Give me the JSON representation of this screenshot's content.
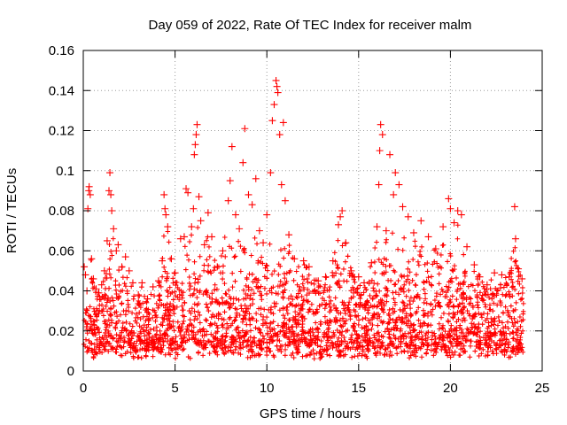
{
  "chart_data": {
    "type": "scatter",
    "title": "Day 059 of 2022, Rate Of TEC Index for receiver malm",
    "xlabel": "GPS time / hours",
    "ylabel": "ROTI / TECUs",
    "xlim": [
      0,
      25
    ],
    "ylim": [
      0,
      0.16
    ],
    "xticks": [
      0,
      5,
      10,
      15,
      20,
      25
    ],
    "xtick_labels": [
      "0",
      "5",
      "10",
      "15",
      "20",
      "25"
    ],
    "yticks": [
      0,
      0.02,
      0.04,
      0.06,
      0.08,
      0.1,
      0.12,
      0.14,
      0.16
    ],
    "ytick_labels": [
      "0",
      "0.02",
      "0.04",
      "0.06",
      "0.08",
      "0.1",
      "0.12",
      "0.14",
      "0.16"
    ],
    "grid": true,
    "legend": "none",
    "marker": "plus",
    "marker_color": "#ff0000",
    "series": [
      {
        "points": [
          [
            0.05,
            0.052
          ],
          [
            0.12,
            0.048
          ],
          [
            0.2,
            0.04
          ],
          [
            0.25,
            0.081
          ],
          [
            0.3,
            0.09
          ],
          [
            0.32,
            0.092
          ],
          [
            0.38,
            0.088
          ],
          [
            0.45,
            0.056
          ],
          [
            0.55,
            0.046
          ],
          [
            0.7,
            0.041
          ],
          [
            0.85,
            0.039
          ],
          [
            1.0,
            0.043
          ],
          [
            1.15,
            0.05
          ],
          [
            1.3,
            0.065
          ],
          [
            1.4,
            0.09
          ],
          [
            1.45,
            0.099
          ],
          [
            1.5,
            0.088
          ],
          [
            1.55,
            0.08
          ],
          [
            1.65,
            0.071
          ],
          [
            1.8,
            0.06
          ],
          [
            1.9,
            0.063
          ],
          [
            2.1,
            0.052
          ],
          [
            2.3,
            0.057
          ],
          [
            2.5,
            0.05
          ],
          [
            2.7,
            0.044
          ],
          [
            3.0,
            0.038
          ],
          [
            3.2,
            0.044
          ],
          [
            3.5,
            0.036
          ],
          [
            3.8,
            0.042
          ],
          [
            4.1,
            0.045
          ],
          [
            4.3,
            0.055
          ],
          [
            4.4,
            0.088
          ],
          [
            4.45,
            0.081
          ],
          [
            4.5,
            0.078
          ],
          [
            4.6,
            0.072
          ],
          [
            4.8,
            0.056
          ],
          [
            5.0,
            0.049
          ],
          [
            5.3,
            0.066
          ],
          [
            5.5,
            0.067
          ],
          [
            5.6,
            0.091
          ],
          [
            5.7,
            0.089
          ],
          [
            5.9,
            0.072
          ],
          [
            6.0,
            0.081
          ],
          [
            6.05,
            0.108
          ],
          [
            6.1,
            0.113
          ],
          [
            6.15,
            0.118
          ],
          [
            6.2,
            0.123
          ],
          [
            6.3,
            0.087
          ],
          [
            6.4,
            0.075
          ],
          [
            6.6,
            0.063
          ],
          [
            6.8,
            0.079
          ],
          [
            7.0,
            0.067
          ],
          [
            7.3,
            0.052
          ],
          [
            7.6,
            0.06
          ],
          [
            7.9,
            0.085
          ],
          [
            8.0,
            0.095
          ],
          [
            8.1,
            0.112
          ],
          [
            8.3,
            0.078
          ],
          [
            8.5,
            0.071
          ],
          [
            8.7,
            0.104
          ],
          [
            8.8,
            0.121
          ],
          [
            9.0,
            0.088
          ],
          [
            9.2,
            0.083
          ],
          [
            9.4,
            0.096
          ],
          [
            9.6,
            0.07
          ],
          [
            9.8,
            0.064
          ],
          [
            10.0,
            0.078
          ],
          [
            10.2,
            0.099
          ],
          [
            10.3,
            0.125
          ],
          [
            10.4,
            0.133
          ],
          [
            10.5,
            0.145
          ],
          [
            10.55,
            0.142
          ],
          [
            10.6,
            0.139
          ],
          [
            10.7,
            0.118
          ],
          [
            10.8,
            0.093
          ],
          [
            10.9,
            0.124
          ],
          [
            11.0,
            0.085
          ],
          [
            11.2,
            0.068
          ],
          [
            11.5,
            0.056
          ],
          [
            12.0,
            0.055
          ],
          [
            12.3,
            0.052
          ],
          [
            12.8,
            0.045
          ],
          [
            13.2,
            0.047
          ],
          [
            13.6,
            0.055
          ],
          [
            13.9,
            0.073
          ],
          [
            14.0,
            0.077
          ],
          [
            14.1,
            0.08
          ],
          [
            14.3,
            0.064
          ],
          [
            14.6,
            0.05
          ],
          [
            15.0,
            0.047
          ],
          [
            15.3,
            0.044
          ],
          [
            15.7,
            0.054
          ],
          [
            16.0,
            0.072
          ],
          [
            16.1,
            0.093
          ],
          [
            16.15,
            0.11
          ],
          [
            16.2,
            0.123
          ],
          [
            16.3,
            0.118
          ],
          [
            16.5,
            0.07
          ],
          [
            16.7,
            0.108
          ],
          [
            16.9,
            0.088
          ],
          [
            17.0,
            0.099
          ],
          [
            17.2,
            0.093
          ],
          [
            17.4,
            0.082
          ],
          [
            17.7,
            0.077
          ],
          [
            18.0,
            0.069
          ],
          [
            18.4,
            0.075
          ],
          [
            18.8,
            0.067
          ],
          [
            19.2,
            0.061
          ],
          [
            19.6,
            0.072
          ],
          [
            19.9,
            0.086
          ],
          [
            20.0,
            0.081
          ],
          [
            20.2,
            0.074
          ],
          [
            20.4,
            0.08
          ],
          [
            20.6,
            0.078
          ],
          [
            20.9,
            0.062
          ],
          [
            21.3,
            0.053
          ],
          [
            21.6,
            0.047
          ],
          [
            22.0,
            0.043
          ],
          [
            22.4,
            0.049
          ],
          [
            22.8,
            0.048
          ],
          [
            23.2,
            0.047
          ],
          [
            23.5,
            0.082
          ],
          [
            23.55,
            0.066
          ],
          [
            23.7,
            0.051
          ],
          [
            23.9,
            0.046
          ]
        ]
      }
    ]
  }
}
